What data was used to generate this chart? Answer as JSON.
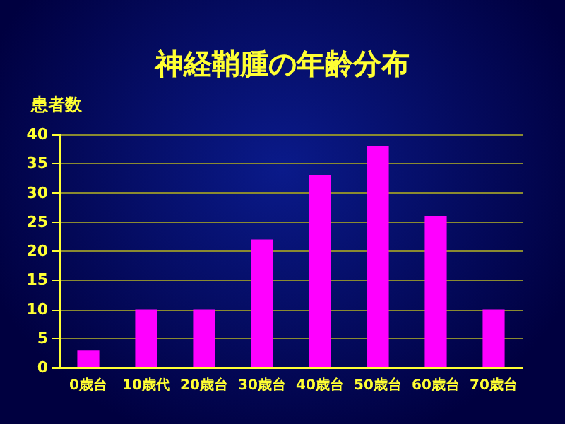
{
  "chart_data": {
    "type": "bar",
    "title": "神経鞘腫の年齢分布",
    "ylabel": "患者数",
    "categories": [
      "0歳台",
      "10歳代",
      "20歳台",
      "30歳台",
      "40歳台",
      "50歳台",
      "60歳台",
      "70歳台"
    ],
    "values": [
      3,
      10,
      10,
      22,
      33,
      38,
      26,
      10
    ],
    "color": "#ff00ff",
    "ylim": [
      0,
      40
    ],
    "yticks": [
      0,
      5,
      10,
      15,
      20,
      25,
      30,
      35,
      40
    ],
    "grid": "y"
  }
}
